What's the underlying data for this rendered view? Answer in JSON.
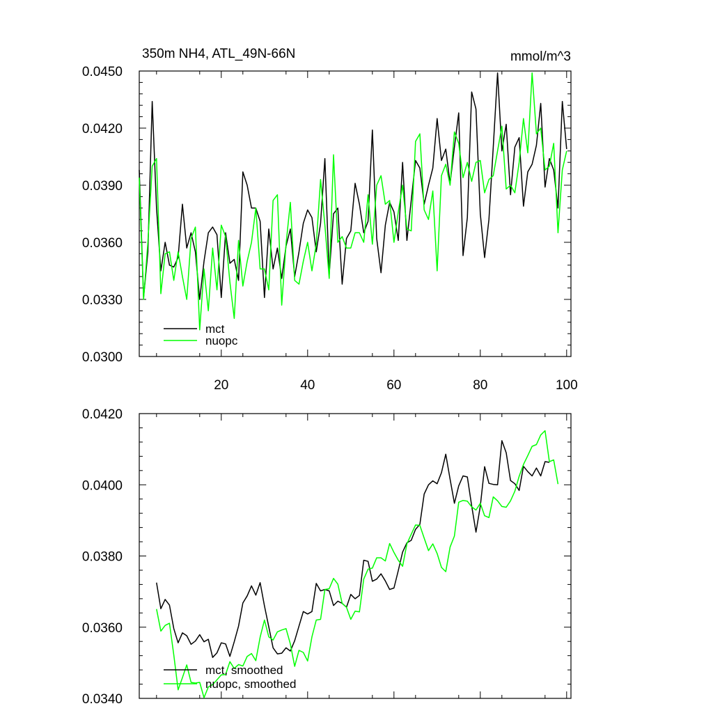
{
  "chart_data": [
    {
      "type": "line",
      "title": "350m NH4, ATL_49N-66N",
      "units": "mmol/m^3",
      "xlabel": "",
      "ylabel": "",
      "xlim": [
        1,
        101
      ],
      "ylim": [
        0.03,
        0.045
      ],
      "xticks": [
        20,
        40,
        60,
        80,
        100
      ],
      "xtick_labels": [
        "20",
        "40",
        "60",
        "80",
        "100"
      ],
      "yticks": [
        0.03,
        0.033,
        0.036,
        0.039,
        0.042,
        0.045
      ],
      "ytick_labels": [
        "0.0300",
        "0.0330",
        "0.0360",
        "0.0390",
        "0.0420",
        "0.0450"
      ],
      "legend_position": "bottom-left",
      "series": [
        {
          "name": "mct",
          "color": "#000000",
          "x_start": 1,
          "values": [
            0.0398,
            0.0331,
            0.0355,
            0.0434,
            0.0378,
            0.0345,
            0.036,
            0.0348,
            0.0347,
            0.0352,
            0.038,
            0.0357,
            0.0365,
            0.0355,
            0.033,
            0.035,
            0.0365,
            0.0368,
            0.0364,
            0.0331,
            0.0365,
            0.0349,
            0.0351,
            0.034,
            0.0397,
            0.039,
            0.0378,
            0.0378,
            0.0371,
            0.0331,
            0.0367,
            0.0346,
            0.0357,
            0.0341,
            0.0358,
            0.0367,
            0.0342,
            0.0355,
            0.037,
            0.0377,
            0.0373,
            0.0355,
            0.037,
            0.0404,
            0.0343,
            0.0375,
            0.0378,
            0.0338,
            0.0362,
            0.0366,
            0.0391,
            0.038,
            0.0365,
            0.0371,
            0.0419,
            0.0362,
            0.0344,
            0.0369,
            0.0381,
            0.0376,
            0.0361,
            0.0402,
            0.0361,
            0.0382,
            0.0403,
            0.0399,
            0.038,
            0.039,
            0.0399,
            0.0425,
            0.0403,
            0.0409,
            0.0391,
            0.041,
            0.0428,
            0.0353,
            0.0373,
            0.0439,
            0.043,
            0.0375,
            0.0352,
            0.0372,
            0.041,
            0.0449,
            0.0408,
            0.0422,
            0.0385,
            0.041,
            0.0415,
            0.0379,
            0.0397,
            0.0401,
            0.0411,
            0.0433,
            0.0389,
            0.0404,
            0.0398,
            0.0378,
            0.0434,
            0.0409
          ]
        },
        {
          "name": "nuopc",
          "color": "#00ff00",
          "x_start": 1,
          "values": [
            0.0394,
            0.033,
            0.036,
            0.04,
            0.0404,
            0.0333,
            0.0354,
            0.0355,
            0.034,
            0.0355,
            0.0342,
            0.033,
            0.0362,
            0.0368,
            0.0314,
            0.0346,
            0.0324,
            0.0357,
            0.0335,
            0.0369,
            0.0363,
            0.0339,
            0.032,
            0.0361,
            0.0337,
            0.035,
            0.036,
            0.0378,
            0.0346,
            0.0346,
            0.0335,
            0.0382,
            0.0385,
            0.0327,
            0.0359,
            0.0381,
            0.034,
            0.0338,
            0.035,
            0.036,
            0.0345,
            0.0359,
            0.0393,
            0.0369,
            0.0341,
            0.0406,
            0.036,
            0.0363,
            0.0357,
            0.0357,
            0.0365,
            0.0365,
            0.036,
            0.0385,
            0.0359,
            0.039,
            0.0395,
            0.038,
            0.0382,
            0.036,
            0.0376,
            0.039,
            0.0367,
            0.0366,
            0.0413,
            0.0417,
            0.0377,
            0.0372,
            0.0387,
            0.0345,
            0.0395,
            0.0401,
            0.039,
            0.0418,
            0.0412,
            0.0394,
            0.0402,
            0.0392,
            0.0402,
            0.0403,
            0.0386,
            0.0393,
            0.0395,
            0.0408,
            0.0421,
            0.0388,
            0.039,
            0.0386,
            0.0402,
            0.0425,
            0.0407,
            0.0449,
            0.0417,
            0.042,
            0.0398,
            0.04,
            0.0412,
            0.0365,
            0.0398,
            0.0408
          ]
        }
      ]
    },
    {
      "type": "line",
      "title": "",
      "xlabel": "",
      "ylabel": "",
      "xlim": [
        1,
        101
      ],
      "ylim": [
        0.034,
        0.042
      ],
      "xticks": [
        20,
        40,
        60,
        80,
        100
      ],
      "xtick_labels": [],
      "yticks": [
        0.034,
        0.036,
        0.038,
        0.04,
        0.042
      ],
      "ytick_labels": [
        "0.0340",
        "0.0360",
        "0.0380",
        "0.0400",
        "0.0420"
      ],
      "legend_position": "bottom-left",
      "series": [
        {
          "name": "mct, smoothed",
          "color": "#000000",
          "x_start": 5,
          "values": [
            0.03725,
            0.03652,
            0.03678,
            0.03662,
            0.03596,
            0.03556,
            0.03584,
            0.03576,
            0.03552,
            0.03561,
            0.03579,
            0.03559,
            0.03566,
            0.03515,
            0.03528,
            0.03556,
            0.03553,
            0.03518,
            0.03559,
            0.03603,
            0.03668,
            0.03688,
            0.03716,
            0.0369,
            0.03725,
            0.0366,
            0.03601,
            0.03542,
            0.03525,
            0.03527,
            0.03542,
            0.03533,
            0.03562,
            0.03603,
            0.03644,
            0.03637,
            0.03644,
            0.03723,
            0.03702,
            0.03706,
            0.03702,
            0.03661,
            0.03673,
            0.03667,
            0.03656,
            0.03692,
            0.0368,
            0.03689,
            0.03788,
            0.03785,
            0.03729,
            0.03735,
            0.0375,
            0.0373,
            0.03706,
            0.0371,
            0.03759,
            0.03811,
            0.03837,
            0.03844,
            0.03875,
            0.03889,
            0.03974,
            0.04,
            0.04011,
            0.04003,
            0.04034,
            0.04086,
            0.04016,
            0.03948,
            0.03997,
            0.04025,
            0.04022,
            0.03941,
            0.03867,
            0.0394,
            0.04051,
            0.04004,
            0.04001,
            0.04,
            0.04124,
            0.0409,
            0.04012,
            0.04003,
            0.03984,
            0.04052,
            0.04037,
            0.04025,
            0.04047,
            0.04025,
            0.04065,
            0.04063
          ]
        },
        {
          "name": "nuopc, smoothed",
          "color": "#00ff00",
          "x_start": 5,
          "values": [
            0.03651,
            0.03589,
            0.03605,
            0.03611,
            0.03522,
            0.03424,
            0.03458,
            0.03494,
            0.03445,
            0.03443,
            0.03445,
            0.03402,
            0.03432,
            0.03439,
            0.03452,
            0.03466,
            0.03467,
            0.03503,
            0.03484,
            0.03495,
            0.03491,
            0.03518,
            0.03526,
            0.03506,
            0.03572,
            0.0362,
            0.03573,
            0.03564,
            0.03587,
            0.03592,
            0.03596,
            0.03553,
            0.0349,
            0.03535,
            0.03529,
            0.03505,
            0.03573,
            0.0362,
            0.03622,
            0.03706,
            0.03708,
            0.03737,
            0.03721,
            0.03667,
            0.03656,
            0.03622,
            0.03645,
            0.03643,
            0.03735,
            0.03763,
            0.03766,
            0.03795,
            0.03795,
            0.03786,
            0.03835,
            0.0381,
            0.03788,
            0.03771,
            0.03834,
            0.03861,
            0.03887,
            0.03886,
            0.0385,
            0.03815,
            0.03834,
            0.03807,
            0.03768,
            0.03756,
            0.03825,
            0.03856,
            0.03951,
            0.03956,
            0.03954,
            0.03938,
            0.03929,
            0.03948,
            0.03913,
            0.03908,
            0.03966,
            0.03955,
            0.03939,
            0.03937,
            0.03955,
            0.03982,
            0.04024,
            0.04057,
            0.04082,
            0.04108,
            0.04113,
            0.0414,
            0.04152,
            0.04065,
            0.0407,
            0.04002
          ]
        }
      ]
    }
  ]
}
